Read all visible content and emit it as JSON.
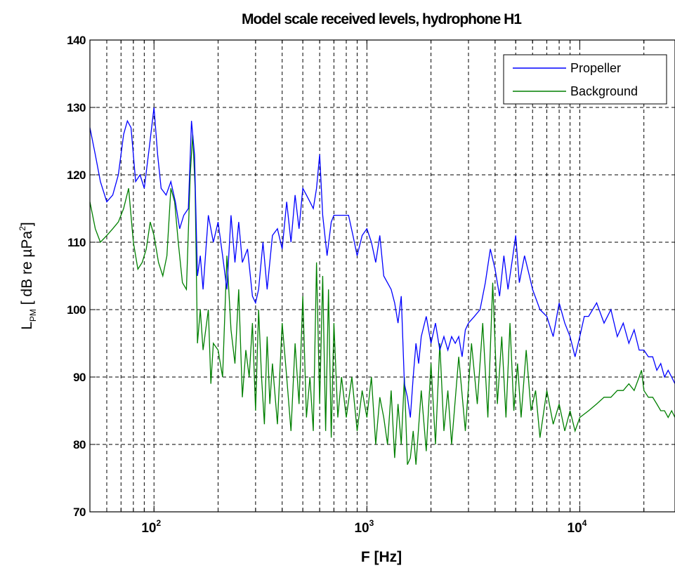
{
  "chart_data": {
    "type": "line",
    "title": "Model scale received levels, hydrophone H1",
    "xlabel": "F [Hz]",
    "ylabel": {
      "main": "L",
      "subscript": "PM",
      "bracket_open": " [ dB re ",
      "mu": "µ",
      "unit": "Pa",
      "sup": "2",
      "bracket_close": "]"
    },
    "xscale": "log",
    "xlim": [
      50,
      28000
    ],
    "ylim": [
      70,
      140
    ],
    "yticks": [
      70,
      80,
      90,
      100,
      110,
      120,
      130,
      140
    ],
    "xticks": [
      {
        "base": "10",
        "exp": "2",
        "value": 100
      },
      {
        "base": "10",
        "exp": "3",
        "value": 1000
      },
      {
        "base": "10",
        "exp": "4",
        "value": 10000
      }
    ],
    "grid": true,
    "legend_position": "top-right",
    "series": [
      {
        "name": "Propeller",
        "color": "#0000ff",
        "points": [
          [
            50,
            127
          ],
          [
            53,
            123
          ],
          [
            56,
            119
          ],
          [
            60,
            116
          ],
          [
            64,
            117
          ],
          [
            68,
            120
          ],
          [
            72,
            126
          ],
          [
            75,
            128
          ],
          [
            78,
            127
          ],
          [
            82,
            119
          ],
          [
            86,
            120
          ],
          [
            90,
            118
          ],
          [
            95,
            124
          ],
          [
            100,
            130
          ],
          [
            104,
            123
          ],
          [
            108,
            118
          ],
          [
            114,
            117
          ],
          [
            120,
            119
          ],
          [
            126,
            116
          ],
          [
            132,
            112
          ],
          [
            138,
            114
          ],
          [
            145,
            115
          ],
          [
            150,
            128
          ],
          [
            155,
            123
          ],
          [
            160,
            105
          ],
          [
            165,
            108
          ],
          [
            170,
            103
          ],
          [
            180,
            114
          ],
          [
            190,
            110
          ],
          [
            200,
            113
          ],
          [
            210,
            108
          ],
          [
            220,
            103
          ],
          [
            230,
            114
          ],
          [
            240,
            107
          ],
          [
            250,
            113
          ],
          [
            260,
            107
          ],
          [
            275,
            109
          ],
          [
            290,
            102
          ],
          [
            300,
            101
          ],
          [
            310,
            103
          ],
          [
            325,
            110
          ],
          [
            340,
            103
          ],
          [
            360,
            111
          ],
          [
            380,
            112
          ],
          [
            400,
            109
          ],
          [
            420,
            116
          ],
          [
            440,
            110
          ],
          [
            460,
            117
          ],
          [
            480,
            112
          ],
          [
            500,
            118
          ],
          [
            520,
            117
          ],
          [
            540,
            116
          ],
          [
            560,
            115
          ],
          [
            580,
            118
          ],
          [
            600,
            123
          ],
          [
            620,
            114
          ],
          [
            650,
            108
          ],
          [
            680,
            113
          ],
          [
            700,
            114
          ],
          [
            740,
            114
          ],
          [
            780,
            114
          ],
          [
            820,
            114
          ],
          [
            860,
            111
          ],
          [
            900,
            108
          ],
          [
            950,
            111
          ],
          [
            1000,
            112
          ],
          [
            1050,
            110
          ],
          [
            1100,
            107
          ],
          [
            1150,
            111
          ],
          [
            1200,
            105
          ],
          [
            1300,
            103
          ],
          [
            1350,
            101
          ],
          [
            1400,
            98
          ],
          [
            1450,
            102
          ],
          [
            1500,
            89
          ],
          [
            1550,
            87
          ],
          [
            1600,
            84
          ],
          [
            1650,
            90
          ],
          [
            1700,
            95
          ],
          [
            1750,
            92
          ],
          [
            1800,
            96
          ],
          [
            1900,
            99
          ],
          [
            2000,
            95
          ],
          [
            2100,
            98
          ],
          [
            2200,
            94
          ],
          [
            2300,
            96
          ],
          [
            2400,
            94
          ],
          [
            2500,
            96
          ],
          [
            2600,
            95
          ],
          [
            2700,
            96
          ],
          [
            2800,
            93
          ],
          [
            2900,
            97
          ],
          [
            3000,
            98
          ],
          [
            3200,
            99
          ],
          [
            3400,
            100
          ],
          [
            3600,
            104
          ],
          [
            3800,
            109
          ],
          [
            4000,
            106
          ],
          [
            4200,
            102
          ],
          [
            4400,
            108
          ],
          [
            4600,
            103
          ],
          [
            4800,
            107
          ],
          [
            5000,
            111
          ],
          [
            5200,
            104
          ],
          [
            5500,
            108
          ],
          [
            5800,
            105
          ],
          [
            6000,
            103
          ],
          [
            6500,
            100
          ],
          [
            7000,
            99
          ],
          [
            7500,
            96
          ],
          [
            8000,
            101
          ],
          [
            8500,
            98
          ],
          [
            9000,
            96
          ],
          [
            9500,
            93
          ],
          [
            10000,
            96
          ],
          [
            10500,
            99
          ],
          [
            11000,
            99
          ],
          [
            12000,
            101
          ],
          [
            13000,
            98
          ],
          [
            14000,
            100
          ],
          [
            15000,
            96
          ],
          [
            16000,
            98
          ],
          [
            17000,
            95
          ],
          [
            18000,
            97
          ],
          [
            19000,
            94
          ],
          [
            20000,
            94
          ],
          [
            21000,
            93
          ],
          [
            22000,
            93
          ],
          [
            23000,
            91
          ],
          [
            24000,
            92
          ],
          [
            25000,
            90
          ],
          [
            26000,
            91
          ],
          [
            27000,
            90
          ],
          [
            28000,
            89
          ]
        ]
      },
      {
        "name": "Background",
        "color": "#007f00",
        "points": [
          [
            50,
            116
          ],
          [
            53,
            112
          ],
          [
            56,
            110
          ],
          [
            60,
            111
          ],
          [
            64,
            112
          ],
          [
            68,
            113
          ],
          [
            72,
            115
          ],
          [
            76,
            118
          ],
          [
            80,
            110
          ],
          [
            84,
            106
          ],
          [
            88,
            107
          ],
          [
            92,
            109
          ],
          [
            96,
            113
          ],
          [
            100,
            111
          ],
          [
            105,
            107
          ],
          [
            110,
            105
          ],
          [
            115,
            108
          ],
          [
            120,
            118
          ],
          [
            125,
            116
          ],
          [
            130,
            110
          ],
          [
            136,
            104
          ],
          [
            142,
            103
          ],
          [
            148,
            120
          ],
          [
            152,
            126
          ],
          [
            156,
            118
          ],
          [
            160,
            95
          ],
          [
            165,
            100
          ],
          [
            170,
            94
          ],
          [
            180,
            100
          ],
          [
            185,
            89
          ],
          [
            190,
            95
          ],
          [
            200,
            94
          ],
          [
            210,
            90
          ],
          [
            220,
            108
          ],
          [
            230,
            97
          ],
          [
            240,
            92
          ],
          [
            250,
            103
          ],
          [
            260,
            87
          ],
          [
            270,
            94
          ],
          [
            280,
            90
          ],
          [
            290,
            98
          ],
          [
            300,
            85
          ],
          [
            310,
            100
          ],
          [
            320,
            90
          ],
          [
            330,
            83
          ],
          [
            340,
            96
          ],
          [
            350,
            86
          ],
          [
            360,
            92
          ],
          [
            380,
            83
          ],
          [
            400,
            98
          ],
          [
            420,
            90
          ],
          [
            440,
            82
          ],
          [
            460,
            95
          ],
          [
            480,
            86
          ],
          [
            500,
            102
          ],
          [
            520,
            84
          ],
          [
            540,
            90
          ],
          [
            560,
            82
          ],
          [
            580,
            107
          ],
          [
            600,
            86
          ],
          [
            620,
            105
          ],
          [
            640,
            82
          ],
          [
            660,
            103
          ],
          [
            680,
            81
          ],
          [
            700,
            98
          ],
          [
            730,
            84
          ],
          [
            760,
            90
          ],
          [
            800,
            84
          ],
          [
            850,
            90
          ],
          [
            900,
            82
          ],
          [
            950,
            88
          ],
          [
            1000,
            84
          ],
          [
            1050,
            90
          ],
          [
            1100,
            80
          ],
          [
            1150,
            87
          ],
          [
            1200,
            84
          ],
          [
            1250,
            80
          ],
          [
            1300,
            88
          ],
          [
            1350,
            78
          ],
          [
            1400,
            86
          ],
          [
            1450,
            80
          ],
          [
            1500,
            90
          ],
          [
            1550,
            77
          ],
          [
            1600,
            78
          ],
          [
            1650,
            82
          ],
          [
            1700,
            77
          ],
          [
            1800,
            88
          ],
          [
            1900,
            79
          ],
          [
            2000,
            92
          ],
          [
            2100,
            80
          ],
          [
            2200,
            95
          ],
          [
            2300,
            82
          ],
          [
            2400,
            88
          ],
          [
            2500,
            80
          ],
          [
            2700,
            93
          ],
          [
            2900,
            82
          ],
          [
            3100,
            95
          ],
          [
            3300,
            86
          ],
          [
            3500,
            98
          ],
          [
            3700,
            84
          ],
          [
            3900,
            104
          ],
          [
            4100,
            86
          ],
          [
            4300,
            96
          ],
          [
            4500,
            84
          ],
          [
            4700,
            98
          ],
          [
            4900,
            85
          ],
          [
            5100,
            92
          ],
          [
            5300,
            84
          ],
          [
            5600,
            94
          ],
          [
            5900,
            85
          ],
          [
            6200,
            88
          ],
          [
            6500,
            81
          ],
          [
            7000,
            88
          ],
          [
            7500,
            83
          ],
          [
            8000,
            86
          ],
          [
            8500,
            82
          ],
          [
            9000,
            85
          ],
          [
            9500,
            82
          ],
          [
            10000,
            84
          ],
          [
            11000,
            85
          ],
          [
            12000,
            86
          ],
          [
            13000,
            87
          ],
          [
            14000,
            87
          ],
          [
            15000,
            88
          ],
          [
            16000,
            88
          ],
          [
            17000,
            89
          ],
          [
            18000,
            88
          ],
          [
            19000,
            90
          ],
          [
            19500,
            91
          ],
          [
            20000,
            88
          ],
          [
            21000,
            87
          ],
          [
            22000,
            87
          ],
          [
            23000,
            86
          ],
          [
            24000,
            85
          ],
          [
            25000,
            85
          ],
          [
            26000,
            84
          ],
          [
            27000,
            85
          ],
          [
            28000,
            84
          ]
        ]
      }
    ]
  }
}
